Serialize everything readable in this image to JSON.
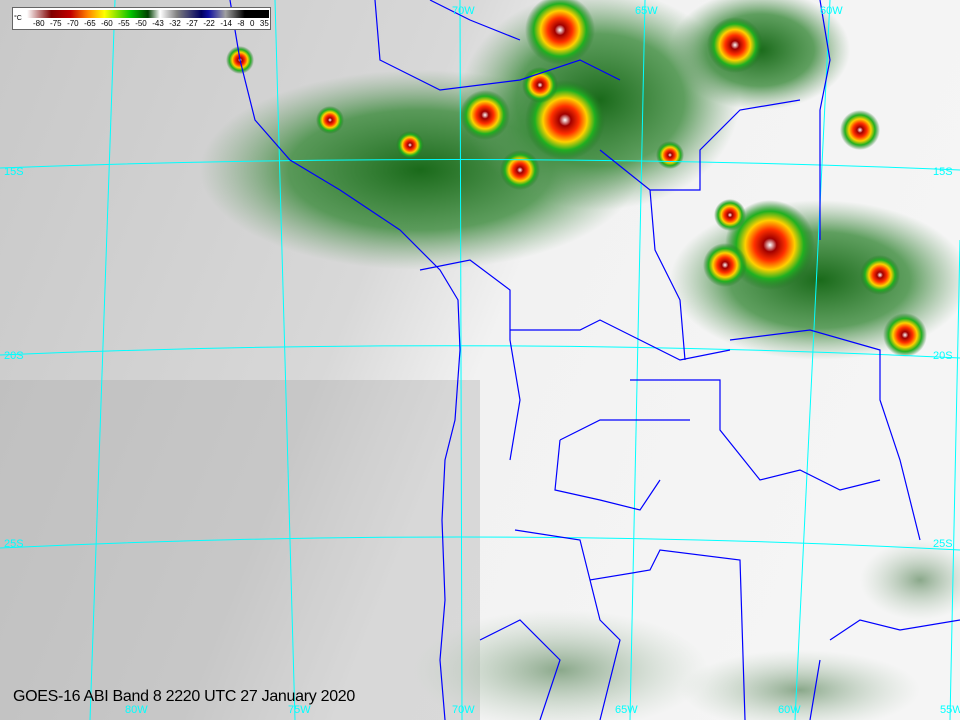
{
  "caption": "GOES-16 ABI Band 8 2220 UTC 27 January 2020",
  "colorbar": {
    "unit": "°C",
    "ticks": [
      "-80",
      "-75",
      "-70",
      "-65",
      "-60",
      "-55",
      "-50",
      "-43",
      "-32",
      "-27",
      "-22",
      "-14",
      "-8",
      "0",
      "35"
    ]
  },
  "grid_labels": {
    "top": [
      "70W",
      "65W",
      "60W"
    ],
    "left": [
      "15S",
      "20S",
      "25S"
    ],
    "right": [
      "15S",
      "20S",
      "25S"
    ],
    "bottom": [
      "80W",
      "75W",
      "70W",
      "65W",
      "60W",
      "55W"
    ]
  },
  "colors": {
    "graticule": "#00ffff",
    "borders": "#0000ff"
  }
}
